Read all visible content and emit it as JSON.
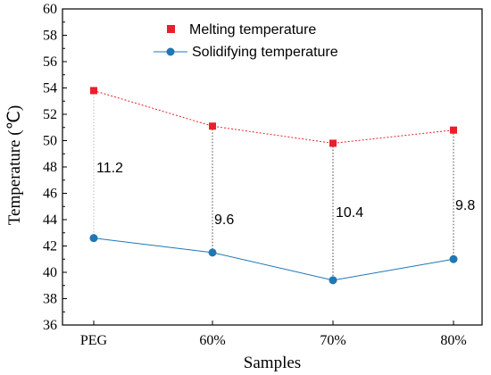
{
  "chart_data": {
    "type": "line",
    "categories": [
      "PEG",
      "60%",
      "70%",
      "80%"
    ],
    "series": [
      {
        "name": "Melting temperature",
        "values": [
          53.8,
          51.1,
          49.8,
          50.8
        ],
        "color": "#e8202a",
        "marker": "square",
        "line_style": "dotted"
      },
      {
        "name": "Solidifying temperature",
        "values": [
          42.6,
          41.5,
          39.4,
          41.0
        ],
        "color": "#1f77b4",
        "marker": "circle",
        "line_style": "solid"
      }
    ],
    "annotations": [
      "11.2",
      "9.6",
      "10.4",
      "9.8"
    ],
    "xlabel": "Samples",
    "ylabel": "Temperature (℃)",
    "ylim": [
      36,
      60
    ],
    "yticks": [
      36,
      38,
      40,
      42,
      44,
      46,
      48,
      50,
      52,
      54,
      56,
      58,
      60
    ],
    "grid": false,
    "legend": "top-center"
  }
}
